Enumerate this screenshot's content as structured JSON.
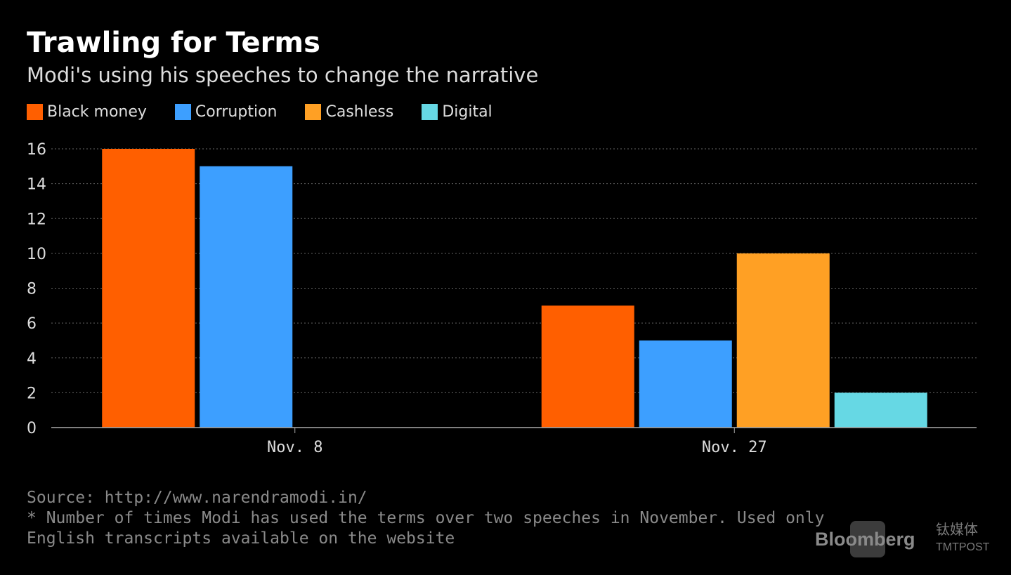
{
  "title": "Trawling for Terms",
  "subtitle": "Modi's using his speeches to change the narrative",
  "footer": {
    "source": "Source: http://www.narendramodi.in/",
    "note_line1": "* Number of times Modi has used the terms over two speeches in November. Used only",
    "note_line2": "English transcripts available on the website"
  },
  "watermark": {
    "brand": "Bloomberg",
    "cn": "钛媒体",
    "tm": "TMTPOST"
  },
  "chart_data": {
    "type": "bar",
    "title": "Trawling for Terms",
    "subtitle": "Modi's using his speeches to change the narrative",
    "categories": [
      "Nov. 8",
      "Nov. 27"
    ],
    "series": [
      {
        "name": "Black money",
        "color": "#ff5f00",
        "values": [
          16,
          7
        ]
      },
      {
        "name": "Corruption",
        "color": "#3d9fff",
        "values": [
          15,
          5
        ]
      },
      {
        "name": "Cashless",
        "color": "#ffa024",
        "values": [
          0,
          10
        ]
      },
      {
        "name": "Digital",
        "color": "#66d8e4",
        "values": [
          0,
          2
        ]
      }
    ],
    "yticks": [
      "0",
      "2",
      "4",
      "6",
      "8",
      "10",
      "12",
      "14",
      "16"
    ],
    "ylim": [
      0,
      16
    ],
    "grid": true,
    "legend": "top-left",
    "xlabel": "",
    "ylabel": ""
  }
}
